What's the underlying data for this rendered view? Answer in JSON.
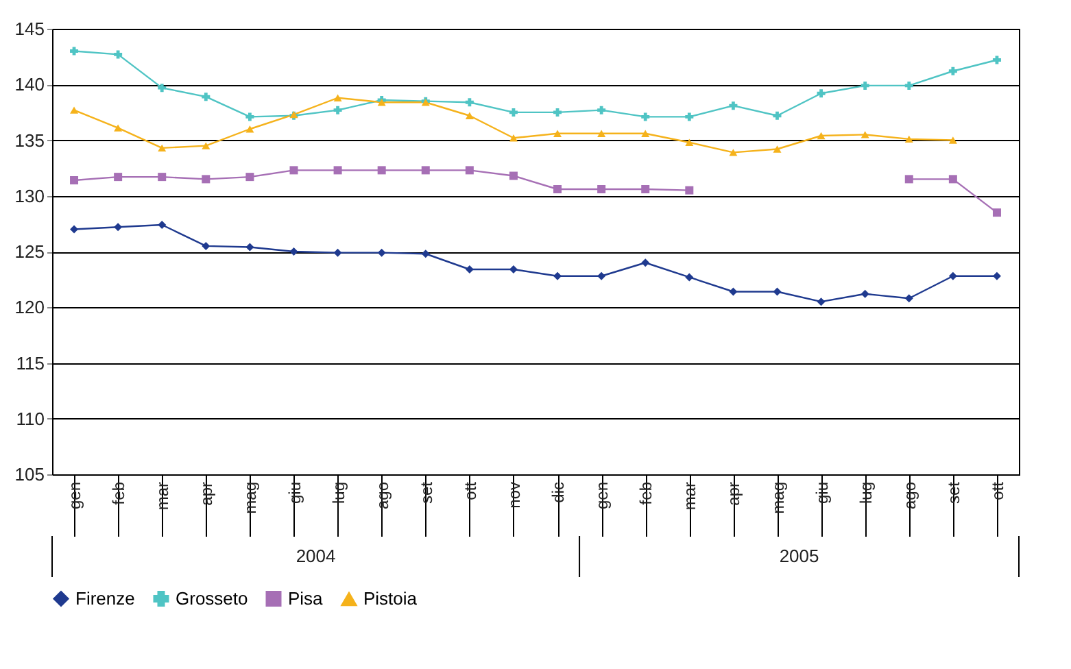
{
  "chart_data": {
    "type": "line",
    "categories": [
      "gen",
      "feb",
      "mar",
      "apr",
      "mag",
      "giu",
      "lug",
      "ago",
      "set",
      "ott",
      "nov",
      "dic",
      "gen",
      "feb",
      "mar",
      "apr",
      "mag",
      "giu",
      "lug",
      "ago",
      "set",
      "ott"
    ],
    "annotations": [
      "2004",
      "2005"
    ],
    "series": [
      {
        "name": "Firenze",
        "color": "#1f3a8f",
        "marker": "diamond",
        "values": [
          127.0,
          127.2,
          127.4,
          125.5,
          125.4,
          125.0,
          124.9,
          124.9,
          124.8,
          123.4,
          123.4,
          122.8,
          122.8,
          124.0,
          122.7,
          121.4,
          121.4,
          120.5,
          121.2,
          120.8,
          122.8,
          122.8
        ]
      },
      {
        "name": "Grosseto",
        "color": "#4fc4c4",
        "marker": "cross",
        "values": [
          143.0,
          142.7,
          139.7,
          138.9,
          137.1,
          137.2,
          137.7,
          138.6,
          138.5,
          138.4,
          137.5,
          137.5,
          137.7,
          137.1,
          137.1,
          138.1,
          137.2,
          139.2,
          139.9,
          139.9,
          141.2,
          142.2
        ]
      },
      {
        "name": "Pisa",
        "color": "#a66fb5",
        "marker": "square",
        "values": [
          131.4,
          131.7,
          131.7,
          131.5,
          131.7,
          132.3,
          132.3,
          132.3,
          132.3,
          132.3,
          131.8,
          130.6,
          130.6,
          130.6,
          130.5,
          null,
          null,
          null,
          null,
          131.5,
          131.5,
          128.5
        ]
      },
      {
        "name": "Pistoia",
        "color": "#f5b21b",
        "marker": "triangle",
        "values": [
          137.7,
          136.1,
          134.3,
          134.5,
          136.0,
          137.3,
          138.8,
          138.4,
          138.4,
          137.2,
          135.2,
          135.6,
          135.6,
          135.6,
          134.8,
          133.9,
          134.2,
          135.4,
          135.5,
          135.1,
          135.0,
          null
        ]
      }
    ],
    "ylim": [
      105,
      145
    ],
    "yticks": [
      105,
      110,
      115,
      120,
      125,
      130,
      135,
      140,
      145
    ],
    "grid": "y",
    "legend": "bottom"
  }
}
